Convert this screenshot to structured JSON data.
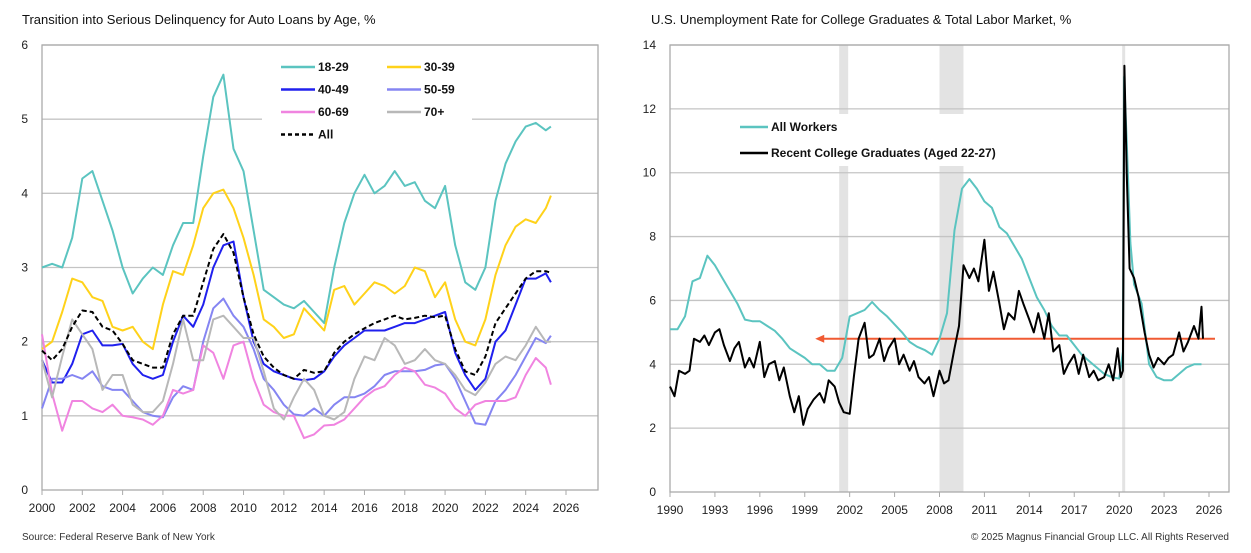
{
  "footer": {
    "source": "Source: Federal Reserve Bank of New York",
    "copyright": "© 2025 Magnus Financial Group LLC. All Rights Reserved"
  },
  "chart_data": [
    {
      "type": "line",
      "title": "Transition into Serious Delinquency for Auto Loans by Age, %",
      "xlim": [
        2000,
        2027.3
      ],
      "ylim": [
        0,
        6
      ],
      "xticks": [
        2000,
        2002,
        2004,
        2006,
        2008,
        2010,
        2012,
        2014,
        2016,
        2018,
        2020,
        2022,
        2024,
        2026
      ],
      "yticks": [
        0,
        1,
        2,
        3,
        4,
        5,
        6
      ],
      "grid": "horizontal",
      "legend": "top-center",
      "x": [
        2000,
        2000.5,
        2001,
        2001.5,
        2002,
        2002.5,
        2003,
        2003.5,
        2004,
        2004.5,
        2005,
        2005.5,
        2006,
        2006.5,
        2007,
        2007.5,
        2008,
        2008.5,
        2009,
        2009.5,
        2010,
        2010.5,
        2011,
        2011.5,
        2012,
        2012.5,
        2013,
        2013.5,
        2014,
        2014.5,
        2015,
        2015.5,
        2016,
        2016.5,
        2017,
        2017.5,
        2018,
        2018.5,
        2019,
        2019.5,
        2020,
        2020.5,
        2021,
        2021.5,
        2022,
        2022.5,
        2023,
        2023.5,
        2024,
        2024.5,
        2025,
        2025.25
      ],
      "series": [
        {
          "name": "18-29",
          "color": "#5bc4c0",
          "dash": false,
          "values": [
            3.0,
            3.05,
            3.0,
            3.4,
            4.2,
            4.3,
            3.9,
            3.5,
            3.0,
            2.65,
            2.85,
            3.0,
            2.9,
            3.3,
            3.6,
            3.6,
            4.5,
            5.3,
            5.6,
            4.6,
            4.3,
            3.5,
            2.7,
            2.6,
            2.5,
            2.45,
            2.55,
            2.4,
            2.25,
            3.0,
            3.6,
            4.0,
            4.25,
            4.0,
            4.1,
            4.3,
            4.1,
            4.15,
            3.9,
            3.8,
            4.1,
            3.3,
            2.8,
            2.7,
            3.0,
            3.9,
            4.4,
            4.7,
            4.9,
            4.95,
            4.85,
            4.9
          ]
        },
        {
          "name": "30-39",
          "color": "#ffd21a",
          "dash": false,
          "values": [
            1.9,
            2.0,
            2.4,
            2.85,
            2.8,
            2.6,
            2.55,
            2.2,
            2.15,
            2.2,
            2.0,
            1.9,
            2.5,
            2.95,
            2.9,
            3.3,
            3.8,
            4.0,
            4.05,
            3.8,
            3.4,
            2.9,
            2.3,
            2.2,
            2.05,
            2.1,
            2.45,
            2.3,
            2.15,
            2.7,
            2.75,
            2.5,
            2.65,
            2.8,
            2.75,
            2.65,
            2.75,
            3.0,
            2.95,
            2.6,
            2.8,
            2.3,
            2.0,
            1.95,
            2.3,
            2.9,
            3.3,
            3.55,
            3.65,
            3.6,
            3.8,
            3.97
          ]
        },
        {
          "name": "40-49",
          "color": "#2020ee",
          "dash": false,
          "values": [
            1.75,
            1.45,
            1.45,
            1.7,
            2.1,
            2.15,
            1.95,
            1.95,
            1.97,
            1.7,
            1.55,
            1.5,
            1.55,
            2.0,
            2.35,
            2.2,
            2.5,
            3.0,
            3.3,
            3.35,
            2.6,
            2.0,
            1.7,
            1.6,
            1.55,
            1.5,
            1.48,
            1.5,
            1.6,
            1.8,
            1.95,
            2.05,
            2.15,
            2.15,
            2.15,
            2.2,
            2.25,
            2.25,
            2.3,
            2.35,
            2.4,
            1.85,
            1.55,
            1.35,
            1.5,
            2.0,
            2.15,
            2.5,
            2.85,
            2.85,
            2.92,
            2.8
          ]
        },
        {
          "name": "50-59",
          "color": "#8585f2",
          "dash": false,
          "values": [
            1.1,
            1.5,
            1.5,
            1.55,
            1.5,
            1.6,
            1.4,
            1.35,
            1.35,
            1.2,
            1.05,
            1.0,
            0.98,
            1.25,
            1.4,
            1.35,
            2.0,
            2.45,
            2.58,
            2.35,
            2.2,
            1.9,
            1.5,
            1.35,
            1.15,
            1.02,
            1.0,
            1.1,
            1.0,
            1.15,
            1.25,
            1.25,
            1.3,
            1.4,
            1.55,
            1.6,
            1.6,
            1.6,
            1.62,
            1.68,
            1.7,
            1.5,
            1.2,
            0.9,
            0.88,
            1.2,
            1.35,
            1.55,
            1.8,
            2.05,
            1.98,
            2.08
          ]
        },
        {
          "name": "60-69",
          "color": "#f084e0",
          "dash": false,
          "values": [
            2.1,
            1.3,
            0.8,
            1.2,
            1.2,
            1.1,
            1.05,
            1.15,
            1.0,
            0.98,
            0.95,
            0.88,
            1.0,
            1.35,
            1.3,
            1.35,
            1.95,
            1.85,
            1.5,
            1.95,
            2.0,
            1.5,
            1.15,
            1.05,
            1.0,
            1.0,
            0.7,
            0.75,
            0.87,
            0.88,
            0.95,
            1.1,
            1.25,
            1.35,
            1.4,
            1.55,
            1.65,
            1.6,
            1.42,
            1.38,
            1.3,
            1.1,
            1.0,
            1.15,
            1.2,
            1.2,
            1.2,
            1.25,
            1.55,
            1.78,
            1.65,
            1.42
          ]
        },
        {
          "name": "70+",
          "color": "#b8b8b8",
          "dash": false,
          "values": [
            1.75,
            1.25,
            1.8,
            2.3,
            2.1,
            1.9,
            1.35,
            1.55,
            1.55,
            1.15,
            1.05,
            1.05,
            1.2,
            1.7,
            2.3,
            1.75,
            1.75,
            2.3,
            2.35,
            2.2,
            2.05,
            2.05,
            1.6,
            1.1,
            0.95,
            1.25,
            1.5,
            1.35,
            1.0,
            0.95,
            1.05,
            1.5,
            1.8,
            1.75,
            2.05,
            1.95,
            1.7,
            1.75,
            1.9,
            1.75,
            1.7,
            1.55,
            1.35,
            1.28,
            1.45,
            1.7,
            1.8,
            1.75,
            1.95,
            2.2,
            2.0,
            2.0
          ]
        },
        {
          "name": "All",
          "color": "#000000",
          "dash": true,
          "values": [
            1.88,
            1.75,
            1.9,
            2.2,
            2.42,
            2.4,
            2.2,
            2.15,
            1.97,
            1.75,
            1.7,
            1.65,
            1.65,
            2.1,
            2.35,
            2.35,
            2.8,
            3.25,
            3.45,
            3.2,
            2.6,
            2.1,
            1.8,
            1.65,
            1.55,
            1.5,
            1.62,
            1.58,
            1.6,
            1.85,
            2.0,
            2.1,
            2.18,
            2.25,
            2.3,
            2.35,
            2.3,
            2.32,
            2.35,
            2.33,
            2.35,
            1.9,
            1.6,
            1.55,
            1.8,
            2.25,
            2.45,
            2.65,
            2.85,
            2.95,
            2.95,
            2.93
          ]
        }
      ]
    },
    {
      "type": "line",
      "title": "U.S. Unemployment Rate for College Graduates & Total Labor Market, %",
      "xlim": [
        1990,
        2027.3
      ],
      "ylim": [
        0,
        14
      ],
      "xticks": [
        1990,
        1993,
        1996,
        1999,
        2002,
        2005,
        2008,
        2011,
        2014,
        2017,
        2020,
        2023,
        2026
      ],
      "yticks": [
        0,
        2,
        4,
        6,
        8,
        10,
        12,
        14
      ],
      "grid": "horizontal",
      "legend": "top-left",
      "recession_shading": [
        [
          2001.3,
          2001.9
        ],
        [
          2008.0,
          2009.6
        ],
        [
          2020.2,
          2020.4
        ]
      ],
      "reference_line": {
        "y": 4.8,
        "from": 1999.7,
        "to": 2026.4,
        "color": "#f05a32",
        "arrow": "left"
      },
      "series": [
        {
          "name": "All Workers",
          "color": "#5bc4c0",
          "x": [
            1990,
            1990.5,
            1991,
            1991.5,
            1992,
            1992.5,
            1993,
            1993.5,
            1994,
            1994.5,
            1995,
            1995.5,
            1996,
            1996.5,
            1997,
            1997.5,
            1998,
            1998.5,
            1999,
            1999.5,
            2000,
            2000.5,
            2001,
            2001.5,
            2002,
            2002.5,
            2003,
            2003.5,
            2004,
            2004.5,
            2005,
            2005.5,
            2006,
            2006.5,
            2007,
            2007.5,
            2008,
            2008.5,
            2009,
            2009.5,
            2010,
            2010.5,
            2011,
            2011.5,
            2012,
            2012.5,
            2013,
            2013.5,
            2014,
            2014.5,
            2015,
            2015.5,
            2016,
            2016.5,
            2017,
            2017.5,
            2018,
            2018.5,
            2019,
            2019.5,
            2020,
            2020.25,
            2020.33,
            2020.5,
            2020.75,
            2021,
            2021.5,
            2022,
            2022.5,
            2023,
            2023.5,
            2024,
            2024.5,
            2025,
            2025.5
          ],
          "values": [
            5.1,
            5.1,
            5.5,
            6.6,
            6.7,
            7.4,
            7.1,
            6.7,
            6.3,
            5.9,
            5.4,
            5.35,
            5.35,
            5.2,
            5.05,
            4.8,
            4.5,
            4.35,
            4.2,
            4.0,
            4.0,
            3.8,
            3.8,
            4.2,
            5.5,
            5.6,
            5.7,
            5.95,
            5.7,
            5.5,
            5.25,
            5.0,
            4.7,
            4.55,
            4.45,
            4.3,
            4.8,
            5.6,
            8.2,
            9.5,
            9.8,
            9.5,
            9.1,
            8.9,
            8.3,
            8.1,
            7.7,
            7.3,
            6.7,
            6.1,
            5.7,
            5.2,
            4.9,
            4.9,
            4.6,
            4.3,
            4.1,
            3.9,
            3.7,
            3.6,
            3.55,
            4.4,
            13.0,
            11.0,
            7.8,
            6.5,
            5.9,
            4.0,
            3.6,
            3.5,
            3.5,
            3.7,
            3.9,
            4.0,
            4.0
          ]
        },
        {
          "name": "Recent College Graduates (Aged 22-27)",
          "color": "#000000",
          "x": [
            1990,
            1990.3,
            1990.6,
            1991,
            1991.3,
            1991.6,
            1992,
            1992.3,
            1992.6,
            1993,
            1993.3,
            1993.6,
            1994,
            1994.3,
            1994.6,
            1995,
            1995.3,
            1995.6,
            1996,
            1996.3,
            1996.6,
            1997,
            1997.3,
            1997.6,
            1998,
            1998.3,
            1998.6,
            1998.9,
            1999.2,
            1999.6,
            2000,
            2000.3,
            2000.6,
            2001,
            2001.3,
            2001.6,
            2002,
            2002.3,
            2002.6,
            2003,
            2003.3,
            2003.6,
            2004,
            2004.3,
            2004.6,
            2005,
            2005.3,
            2005.6,
            2006,
            2006.3,
            2006.6,
            2007,
            2007.3,
            2007.6,
            2008,
            2008.3,
            2008.6,
            2009,
            2009.3,
            2009.6,
            2010,
            2010.3,
            2010.6,
            2011,
            2011.3,
            2011.6,
            2012,
            2012.3,
            2012.6,
            2013,
            2013.3,
            2013.6,
            2014,
            2014.3,
            2014.6,
            2015,
            2015.3,
            2015.6,
            2016,
            2016.3,
            2016.6,
            2017,
            2017.3,
            2017.6,
            2018,
            2018.3,
            2018.6,
            2019,
            2019.3,
            2019.6,
            2019.9,
            2020.1,
            2020.25,
            2020.35,
            2020.5,
            2020.7,
            2021,
            2021.3,
            2021.7,
            2022,
            2022.3,
            2022.6,
            2023,
            2023.3,
            2023.6,
            2024,
            2024.3,
            2024.6,
            2025,
            2025.3,
            2025.5,
            2025.6
          ],
          "values": [
            3.3,
            3.0,
            3.8,
            3.7,
            3.8,
            4.8,
            4.7,
            4.9,
            4.6,
            5.0,
            5.1,
            4.6,
            4.1,
            4.5,
            4.7,
            3.9,
            4.2,
            3.9,
            4.7,
            3.6,
            4.0,
            4.1,
            3.5,
            3.9,
            3.0,
            2.5,
            3.0,
            2.1,
            2.6,
            2.9,
            3.1,
            2.8,
            3.5,
            3.3,
            2.8,
            2.5,
            2.45,
            3.7,
            4.8,
            5.3,
            4.2,
            4.3,
            4.8,
            4.1,
            4.5,
            4.8,
            4.0,
            4.3,
            3.8,
            4.1,
            3.6,
            3.4,
            3.6,
            3.0,
            3.8,
            3.4,
            3.5,
            4.5,
            5.2,
            7.1,
            6.7,
            7.0,
            6.6,
            7.9,
            6.3,
            6.9,
            5.9,
            5.1,
            5.6,
            5.4,
            6.3,
            5.9,
            5.4,
            5.0,
            5.6,
            4.8,
            5.6,
            4.4,
            4.6,
            3.7,
            4.0,
            4.3,
            3.7,
            4.3,
            3.6,
            3.8,
            3.5,
            3.6,
            4.0,
            3.5,
            4.5,
            3.6,
            3.8,
            13.35,
            10.0,
            7.0,
            6.7,
            6.1,
            5.0,
            4.3,
            3.9,
            4.2,
            4.0,
            4.2,
            4.3,
            5.0,
            4.4,
            4.7,
            5.2,
            4.8,
            5.8,
            4.8
          ]
        }
      ]
    }
  ]
}
